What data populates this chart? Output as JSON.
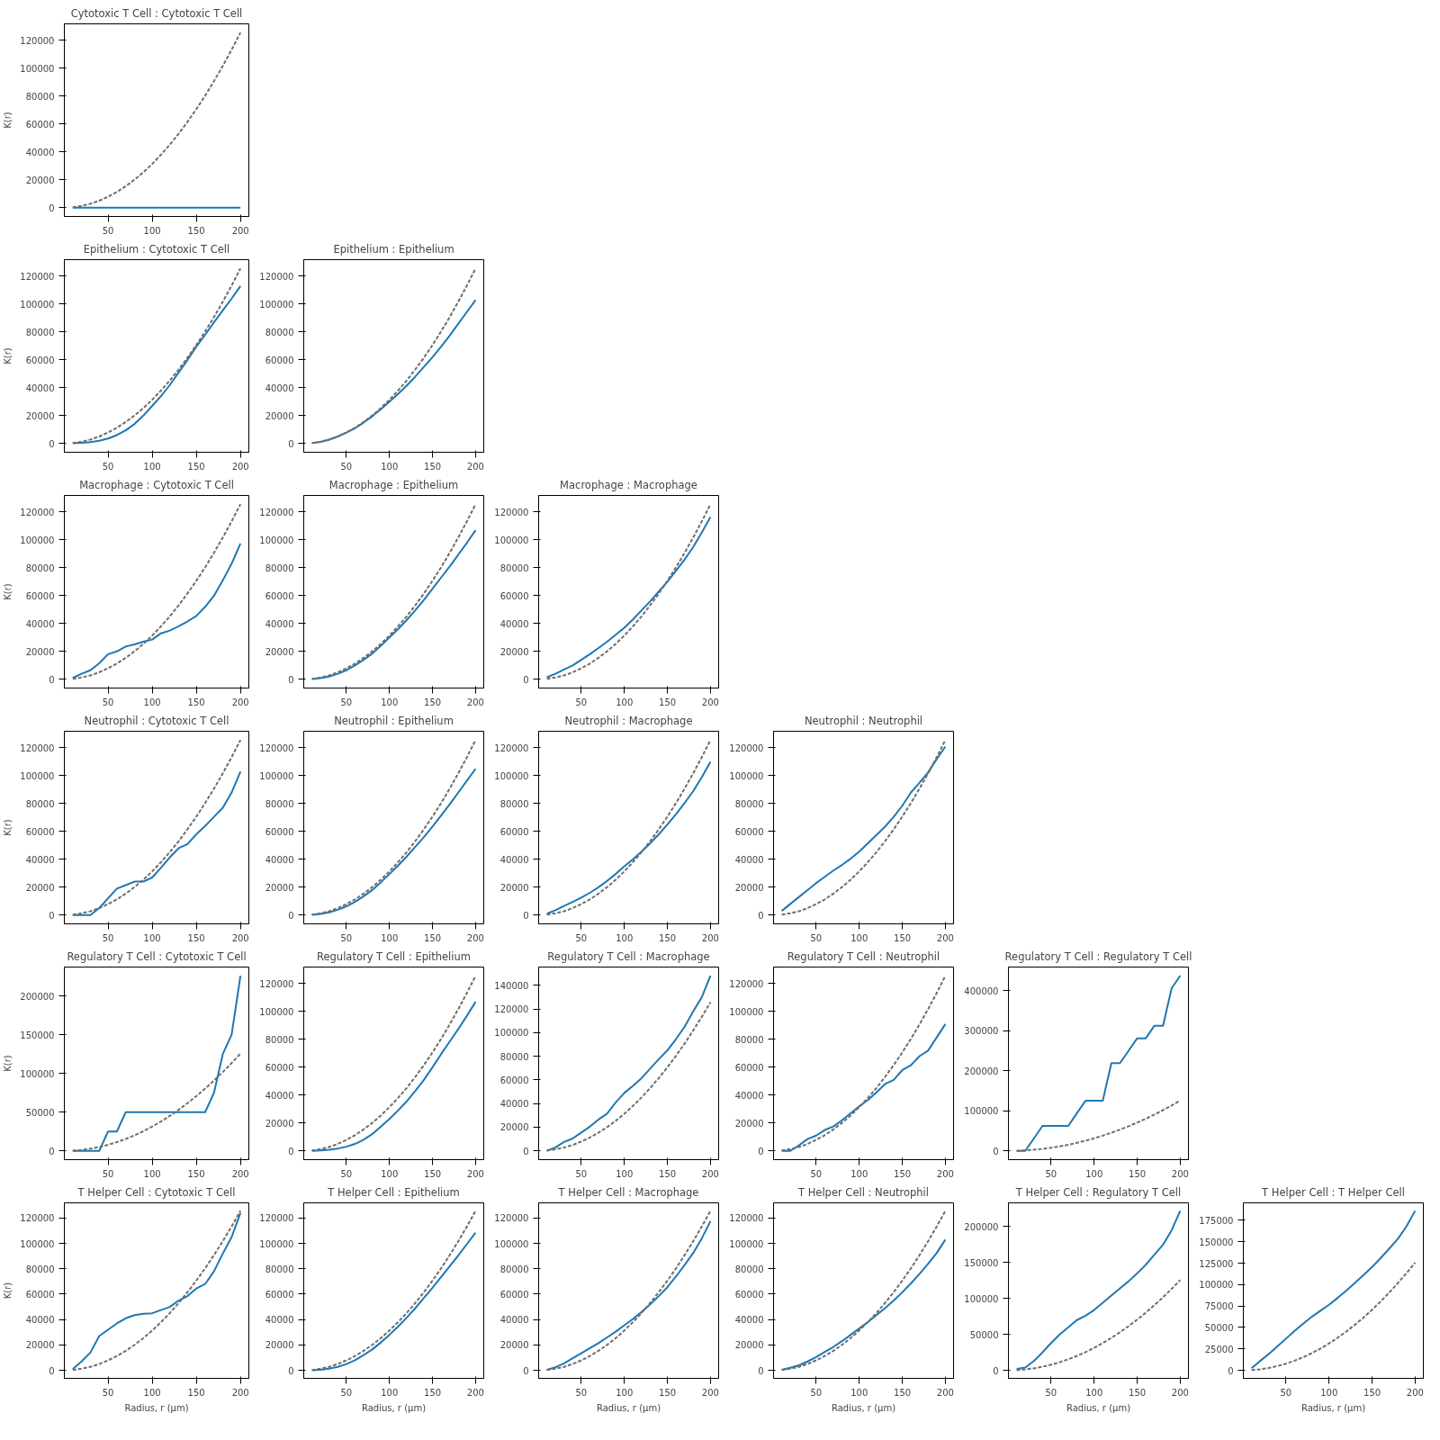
{
  "chart_data": [
    {
      "type": "line",
      "title": "Cytotoxic T Cell : Cytotoxic T Cell",
      "ylabel": "K(r)",
      "x": [
        10,
        20,
        30,
        40,
        50,
        60,
        70,
        80,
        90,
        100,
        110,
        120,
        130,
        140,
        150,
        160,
        170,
        180,
        190,
        200
      ],
      "xlim": [
        0.5,
        209.5
      ],
      "xticks": [
        50,
        100,
        150,
        200
      ],
      "ylim": [
        -6283,
        131947
      ],
      "yticks": [
        0,
        20000,
        40000,
        60000,
        80000,
        100000,
        120000
      ],
      "series": [
        {
          "color": "#1f77b4",
          "line_style": "solid",
          "values": [
            0,
            0,
            0,
            0,
            0,
            0,
            0,
            0,
            0,
            0,
            0,
            0,
            0,
            0,
            0,
            0,
            0,
            0,
            0,
            0
          ]
        },
        {
          "color": "#6e6e6e",
          "line_style": "dashed",
          "values": [
            300,
            1300,
            2800,
            5000,
            7900,
            11300,
            15400,
            20100,
            25400,
            31400,
            38000,
            45200,
            53100,
            61600,
            70700,
            80400,
            90800,
            101800,
            113400,
            125700
          ]
        }
      ]
    },
    {
      "type": "line",
      "title": "Epithelium : Cytotoxic T Cell",
      "ylabel": "K(r)",
      "x": [
        10,
        20,
        30,
        40,
        50,
        60,
        70,
        80,
        90,
        100,
        110,
        120,
        130,
        140,
        150,
        160,
        170,
        180,
        190,
        200
      ],
      "xlim": [
        0.5,
        209.5
      ],
      "xticks": [
        50,
        100,
        150,
        200
      ],
      "ylim": [
        -6283,
        131947
      ],
      "yticks": [
        0,
        20000,
        40000,
        60000,
        80000,
        100000,
        120000
      ],
      "series": [
        {
          "color": "#1f77b4",
          "line_style": "solid",
          "values": [
            200,
            500,
            1000,
            2000,
            3600,
            6000,
            9500,
            14000,
            20000,
            27000,
            34000,
            42000,
            51000,
            60000,
            69500,
            78000,
            87000,
            95500,
            104000,
            113000
          ]
        },
        {
          "color": "#6e6e6e",
          "line_style": "dashed",
          "values": [
            300,
            1300,
            2800,
            5000,
            7900,
            11300,
            15400,
            20100,
            25400,
            31400,
            38000,
            45200,
            53100,
            61600,
            70700,
            80400,
            90800,
            101800,
            113400,
            125700
          ]
        }
      ]
    },
    {
      "type": "line",
      "title": "Epithelium : Epithelium",
      "x": [
        10,
        20,
        30,
        40,
        50,
        60,
        70,
        80,
        90,
        100,
        110,
        120,
        130,
        140,
        150,
        160,
        170,
        180,
        190,
        200
      ],
      "xlim": [
        0.5,
        209.5
      ],
      "xticks": [
        50,
        100,
        150,
        200
      ],
      "ylim": [
        -6283,
        131947
      ],
      "yticks": [
        0,
        20000,
        40000,
        60000,
        80000,
        100000,
        120000
      ],
      "series": [
        {
          "color": "#1f77b4",
          "line_style": "solid",
          "values": [
            300,
            1200,
            2800,
            5000,
            7800,
            11000,
            15000,
            19500,
            24500,
            30000,
            35500,
            41500,
            48000,
            55000,
            62000,
            69500,
            77500,
            86000,
            94500,
            103000
          ]
        },
        {
          "color": "#6e6e6e",
          "line_style": "dashed",
          "values": [
            300,
            1300,
            2800,
            5000,
            7900,
            11300,
            15400,
            20100,
            25400,
            31400,
            38000,
            45200,
            53100,
            61600,
            70700,
            80400,
            90800,
            101800,
            113400,
            125700
          ]
        }
      ]
    },
    {
      "type": "line",
      "title": "Macrophage : Cytotoxic T Cell",
      "ylabel": "K(r)",
      "x": [
        10,
        20,
        30,
        40,
        50,
        60,
        70,
        80,
        90,
        100,
        110,
        120,
        130,
        140,
        150,
        160,
        170,
        180,
        190,
        200
      ],
      "xlim": [
        0.5,
        209.5
      ],
      "xticks": [
        50,
        100,
        150,
        200
      ],
      "ylim": [
        -6283,
        131947
      ],
      "yticks": [
        0,
        20000,
        40000,
        60000,
        80000,
        100000,
        120000
      ],
      "series": [
        {
          "color": "#1f77b4",
          "line_style": "solid",
          "values": [
            1000,
            4000,
            6500,
            11500,
            18000,
            20000,
            23500,
            25000,
            27000,
            28500,
            33000,
            35000,
            38000,
            41500,
            45500,
            52000,
            60000,
            71000,
            83000,
            97500
          ]
        },
        {
          "color": "#6e6e6e",
          "line_style": "dashed",
          "values": [
            300,
            1300,
            2800,
            5000,
            7900,
            11300,
            15400,
            20100,
            25400,
            31400,
            38000,
            45200,
            53100,
            61600,
            70700,
            80400,
            90800,
            101800,
            113400,
            125700
          ]
        }
      ]
    },
    {
      "type": "line",
      "title": "Macrophage : Epithelium",
      "x": [
        10,
        20,
        30,
        40,
        50,
        60,
        70,
        80,
        90,
        100,
        110,
        120,
        130,
        140,
        150,
        160,
        170,
        180,
        190,
        200
      ],
      "xlim": [
        0.5,
        209.5
      ],
      "xticks": [
        50,
        100,
        150,
        200
      ],
      "ylim": [
        -6283,
        131947
      ],
      "yticks": [
        0,
        20000,
        40000,
        60000,
        80000,
        100000,
        120000
      ],
      "series": [
        {
          "color": "#1f77b4",
          "line_style": "solid",
          "values": [
            200,
            800,
            2000,
            4000,
            6500,
            10000,
            14000,
            18500,
            24000,
            30000,
            36000,
            42500,
            49500,
            57000,
            65000,
            73000,
            81000,
            89500,
            98000,
            107000
          ]
        },
        {
          "color": "#6e6e6e",
          "line_style": "dashed",
          "values": [
            300,
            1300,
            2800,
            5000,
            7900,
            11300,
            15400,
            20100,
            25400,
            31400,
            38000,
            45200,
            53100,
            61600,
            70700,
            80400,
            90800,
            101800,
            113400,
            125700
          ]
        }
      ]
    },
    {
      "type": "line",
      "title": "Macrophage : Macrophage",
      "x": [
        10,
        20,
        30,
        40,
        50,
        60,
        70,
        80,
        90,
        100,
        110,
        120,
        130,
        140,
        150,
        160,
        170,
        180,
        190,
        200
      ],
      "xlim": [
        0.5,
        209.5
      ],
      "xticks": [
        50,
        100,
        150,
        200
      ],
      "ylim": [
        -6283,
        131947
      ],
      "yticks": [
        0,
        20000,
        40000,
        60000,
        80000,
        100000,
        120000
      ],
      "series": [
        {
          "color": "#1f77b4",
          "line_style": "solid",
          "values": [
            1500,
            4000,
            7000,
            10000,
            14000,
            18000,
            22500,
            27000,
            32000,
            37000,
            43000,
            49500,
            56000,
            63000,
            70000,
            78000,
            86000,
            95000,
            105500,
            116500
          ]
        },
        {
          "color": "#6e6e6e",
          "line_style": "dashed",
          "values": [
            300,
            1300,
            2800,
            5000,
            7900,
            11300,
            15400,
            20100,
            25400,
            31400,
            38000,
            45200,
            53100,
            61600,
            70700,
            80400,
            90800,
            101800,
            113400,
            125700
          ]
        }
      ]
    },
    {
      "type": "line",
      "title": "Neutrophil : Cytotoxic T Cell",
      "ylabel": "K(r)",
      "x": [
        10,
        20,
        30,
        40,
        50,
        60,
        70,
        80,
        90,
        100,
        110,
        120,
        130,
        140,
        150,
        160,
        170,
        180,
        190,
        200
      ],
      "xlim": [
        0.5,
        209.5
      ],
      "xticks": [
        50,
        100,
        150,
        200
      ],
      "ylim": [
        -6283,
        131947
      ],
      "yticks": [
        0,
        20000,
        40000,
        60000,
        80000,
        100000,
        120000
      ],
      "series": [
        {
          "color": "#1f77b4",
          "line_style": "solid",
          "values": [
            0,
            0,
            0,
            5000,
            12000,
            19000,
            21500,
            24000,
            24000,
            27000,
            34000,
            41500,
            48000,
            51000,
            58000,
            64000,
            70500,
            77000,
            88000,
            103000
          ]
        },
        {
          "color": "#6e6e6e",
          "line_style": "dashed",
          "values": [
            300,
            1300,
            2800,
            5000,
            7900,
            11300,
            15400,
            20100,
            25400,
            31400,
            38000,
            45200,
            53100,
            61600,
            70700,
            80400,
            90800,
            101800,
            113400,
            125700
          ]
        }
      ]
    },
    {
      "type": "line",
      "title": "Neutrophil : Epithelium",
      "x": [
        10,
        20,
        30,
        40,
        50,
        60,
        70,
        80,
        90,
        100,
        110,
        120,
        130,
        140,
        150,
        160,
        170,
        180,
        190,
        200
      ],
      "xlim": [
        0.5,
        209.5
      ],
      "xticks": [
        50,
        100,
        150,
        200
      ],
      "ylim": [
        -6283,
        131947
      ],
      "yticks": [
        0,
        20000,
        40000,
        60000,
        80000,
        100000,
        120000
      ],
      "series": [
        {
          "color": "#1f77b4",
          "line_style": "solid",
          "values": [
            200,
            800,
            2000,
            3800,
            6300,
            9500,
            13500,
            18000,
            23500,
            29500,
            35500,
            42000,
            49000,
            56000,
            63500,
            71500,
            79500,
            88000,
            96500,
            105000
          ]
        },
        {
          "color": "#6e6e6e",
          "line_style": "dashed",
          "values": [
            300,
            1300,
            2800,
            5000,
            7900,
            11300,
            15400,
            20100,
            25400,
            31400,
            38000,
            45200,
            53100,
            61600,
            70700,
            80400,
            90800,
            101800,
            113400,
            125700
          ]
        }
      ]
    },
    {
      "type": "line",
      "title": "Neutrophil : Macrophage",
      "x": [
        10,
        20,
        30,
        40,
        50,
        60,
        70,
        80,
        90,
        100,
        110,
        120,
        130,
        140,
        150,
        160,
        170,
        180,
        190,
        200
      ],
      "xlim": [
        0.5,
        209.5
      ],
      "xticks": [
        50,
        100,
        150,
        200
      ],
      "ylim": [
        -6283,
        131947
      ],
      "yticks": [
        0,
        20000,
        40000,
        60000,
        80000,
        100000,
        120000
      ],
      "series": [
        {
          "color": "#1f77b4",
          "line_style": "solid",
          "values": [
            1000,
            3500,
            6500,
            9500,
            12500,
            16000,
            20000,
            24500,
            29500,
            35000,
            40000,
            45500,
            51500,
            58000,
            65000,
            72500,
            80500,
            89000,
            99000,
            110000
          ]
        },
        {
          "color": "#6e6e6e",
          "line_style": "dashed",
          "values": [
            300,
            1300,
            2800,
            5000,
            7900,
            11300,
            15400,
            20100,
            25400,
            31400,
            38000,
            45200,
            53100,
            61600,
            70700,
            80400,
            90800,
            101800,
            113400,
            125700
          ]
        }
      ]
    },
    {
      "type": "line",
      "title": "Neutrophil : Neutrophil",
      "x": [
        10,
        20,
        30,
        40,
        50,
        60,
        70,
        80,
        90,
        100,
        110,
        120,
        130,
        140,
        150,
        160,
        170,
        180,
        190,
        200
      ],
      "xlim": [
        0.5,
        209.5
      ],
      "xticks": [
        50,
        100,
        150,
        200
      ],
      "ylim": [
        -6283,
        131947
      ],
      "yticks": [
        0,
        20000,
        40000,
        60000,
        80000,
        100000,
        120000
      ],
      "series": [
        {
          "color": "#1f77b4",
          "line_style": "solid",
          "values": [
            3000,
            8000,
            13000,
            18000,
            23000,
            27500,
            32000,
            36000,
            40500,
            45500,
            51500,
            57500,
            63500,
            70500,
            78500,
            88000,
            95000,
            102500,
            112000,
            121000
          ]
        },
        {
          "color": "#6e6e6e",
          "line_style": "dashed",
          "values": [
            300,
            1300,
            2800,
            5000,
            7900,
            11300,
            15400,
            20100,
            25400,
            31400,
            38000,
            45200,
            53100,
            61600,
            70700,
            80400,
            90800,
            101800,
            113400,
            125700
          ]
        }
      ]
    },
    {
      "type": "line",
      "title": "Regulatory T Cell : Cytotoxic T Cell",
      "ylabel": "K(r)",
      "x": [
        10,
        20,
        30,
        40,
        50,
        60,
        70,
        80,
        90,
        100,
        110,
        120,
        130,
        140,
        150,
        160,
        170,
        180,
        190,
        200
      ],
      "xlim": [
        0.5,
        209.5
      ],
      "xticks": [
        50,
        100,
        150,
        200
      ],
      "ylim": [
        -11300,
        237300
      ],
      "yticks": [
        0,
        50000,
        100000,
        150000,
        200000
      ],
      "series": [
        {
          "color": "#1f77b4",
          "line_style": "solid",
          "values": [
            0,
            0,
            0,
            0,
            25000,
            25000,
            50000,
            50000,
            50000,
            50000,
            50000,
            50000,
            50000,
            50000,
            50000,
            50000,
            75000,
            125000,
            150000,
            226000
          ]
        },
        {
          "color": "#6e6e6e",
          "line_style": "dashed",
          "values": [
            300,
            1300,
            2800,
            5000,
            7900,
            11300,
            15400,
            20100,
            25400,
            31400,
            38000,
            45200,
            53100,
            61600,
            70700,
            80400,
            90800,
            101800,
            113400,
            125700
          ]
        }
      ]
    },
    {
      "type": "line",
      "title": "Regulatory T Cell : Epithelium",
      "x": [
        10,
        20,
        30,
        40,
        50,
        60,
        70,
        80,
        90,
        100,
        110,
        120,
        130,
        140,
        150,
        160,
        170,
        180,
        190,
        200
      ],
      "xlim": [
        0.5,
        209.5
      ],
      "xticks": [
        50,
        100,
        150,
        200
      ],
      "ylim": [
        -6283,
        131947
      ],
      "yticks": [
        0,
        20000,
        40000,
        60000,
        80000,
        100000,
        120000
      ],
      "series": [
        {
          "color": "#1f77b4",
          "line_style": "solid",
          "values": [
            0,
            300,
            800,
            1700,
            3000,
            5000,
            8000,
            12000,
            17500,
            23000,
            29000,
            35500,
            43000,
            51000,
            60000,
            69500,
            78500,
            87500,
            97000,
            107000
          ]
        },
        {
          "color": "#6e6e6e",
          "line_style": "dashed",
          "values": [
            300,
            1300,
            2800,
            5000,
            7900,
            11300,
            15400,
            20100,
            25400,
            31400,
            38000,
            45200,
            53100,
            61600,
            70700,
            80400,
            90800,
            101800,
            113400,
            125700
          ]
        }
      ]
    },
    {
      "type": "line",
      "title": "Regulatory T Cell : Macrophage",
      "x": [
        10,
        20,
        30,
        40,
        50,
        60,
        70,
        80,
        90,
        100,
        110,
        120,
        130,
        140,
        150,
        160,
        170,
        180,
        190,
        200
      ],
      "xlim": [
        0.5,
        209.5
      ],
      "xticks": [
        50,
        100,
        150,
        200
      ],
      "ylim": [
        -7400,
        155400
      ],
      "yticks": [
        0,
        20000,
        40000,
        60000,
        80000,
        100000,
        120000,
        140000
      ],
      "series": [
        {
          "color": "#1f77b4",
          "line_style": "solid",
          "values": [
            0,
            3000,
            7500,
            10500,
            15500,
            20500,
            26500,
            31500,
            41000,
            49000,
            55000,
            61500,
            69500,
            77500,
            85000,
            94500,
            105000,
            118000,
            130000,
            148000
          ]
        },
        {
          "color": "#6e6e6e",
          "line_style": "dashed",
          "values": [
            300,
            1300,
            2800,
            5000,
            7900,
            11300,
            15400,
            20100,
            25400,
            31400,
            38000,
            45200,
            53100,
            61600,
            70700,
            80400,
            90800,
            101800,
            113400,
            125700
          ]
        }
      ]
    },
    {
      "type": "line",
      "title": "Regulatory T Cell : Neutrophil",
      "x": [
        10,
        20,
        30,
        40,
        50,
        60,
        70,
        80,
        90,
        100,
        110,
        120,
        130,
        140,
        150,
        160,
        170,
        180,
        190,
        200
      ],
      "xlim": [
        0.5,
        209.5
      ],
      "xticks": [
        50,
        100,
        150,
        200
      ],
      "ylim": [
        -6283,
        131947
      ],
      "yticks": [
        0,
        20000,
        40000,
        60000,
        80000,
        100000,
        120000
      ],
      "series": [
        {
          "color": "#1f77b4",
          "line_style": "solid",
          "values": [
            0,
            0,
            4000,
            8500,
            11000,
            15000,
            17500,
            22000,
            27000,
            32000,
            36500,
            42000,
            48000,
            51000,
            58000,
            61500,
            68000,
            72000,
            81500,
            91000
          ]
        },
        {
          "color": "#6e6e6e",
          "line_style": "dashed",
          "values": [
            300,
            1300,
            2800,
            5000,
            7900,
            11300,
            15400,
            20100,
            25400,
            31400,
            38000,
            45200,
            53100,
            61600,
            70700,
            80400,
            90800,
            101800,
            113400,
            125700
          ]
        }
      ]
    },
    {
      "type": "line",
      "title": "Regulatory T Cell : Regulatory T Cell",
      "x": [
        10,
        20,
        30,
        40,
        50,
        60,
        70,
        80,
        90,
        100,
        110,
        120,
        130,
        140,
        150,
        160,
        170,
        180,
        190,
        200
      ],
      "xlim": [
        0.5,
        209.5
      ],
      "xticks": [
        50,
        100,
        150,
        200
      ],
      "ylim": [
        -21850,
        458850
      ],
      "yticks": [
        0,
        100000,
        200000,
        300000,
        400000
      ],
      "series": [
        {
          "color": "#1f77b4",
          "line_style": "solid",
          "values": [
            0,
            0,
            31000,
            62500,
            62500,
            62500,
            62500,
            94000,
            125000,
            125000,
            125000,
            219000,
            219000,
            250000,
            281000,
            281000,
            312500,
            312500,
            406000,
            437500
          ]
        },
        {
          "color": "#6e6e6e",
          "line_style": "dashed",
          "values": [
            300,
            1300,
            2800,
            5000,
            7900,
            11300,
            15400,
            20100,
            25400,
            31400,
            38000,
            45200,
            53100,
            61600,
            70700,
            80400,
            90800,
            101800,
            113400,
            125700
          ]
        }
      ]
    },
    {
      "type": "line",
      "title": "T Helper Cell : Cytotoxic T Cell",
      "xlabel": "Radius, r (μm)",
      "ylabel": "K(r)",
      "x": [
        10,
        20,
        30,
        40,
        50,
        60,
        70,
        80,
        90,
        100,
        110,
        120,
        130,
        140,
        150,
        160,
        170,
        180,
        190,
        200
      ],
      "xlim": [
        0.5,
        209.5
      ],
      "xticks": [
        50,
        100,
        150,
        200
      ],
      "ylim": [
        -6283,
        131947
      ],
      "yticks": [
        0,
        20000,
        40000,
        60000,
        80000,
        100000,
        120000
      ],
      "series": [
        {
          "color": "#1f77b4",
          "line_style": "solid",
          "values": [
            1000,
            7000,
            14000,
            27000,
            32000,
            37000,
            41000,
            43500,
            44500,
            45000,
            47500,
            50000,
            55000,
            58500,
            64500,
            68000,
            78000,
            92000,
            105000,
            124000
          ]
        },
        {
          "color": "#6e6e6e",
          "line_style": "dashed",
          "values": [
            300,
            1300,
            2800,
            5000,
            7900,
            11300,
            15400,
            20100,
            25400,
            31400,
            38000,
            45200,
            53100,
            61600,
            70700,
            80400,
            90800,
            101800,
            113400,
            125700
          ]
        }
      ]
    },
    {
      "type": "line",
      "title": "T Helper Cell : Epithelium",
      "xlabel": "Radius, r (μm)",
      "x": [
        10,
        20,
        30,
        40,
        50,
        60,
        70,
        80,
        90,
        100,
        110,
        120,
        130,
        140,
        150,
        160,
        170,
        180,
        190,
        200
      ],
      "xlim": [
        0.5,
        209.5
      ],
      "xticks": [
        50,
        100,
        150,
        200
      ],
      "ylim": [
        -6283,
        131947
      ],
      "yticks": [
        0,
        20000,
        40000,
        60000,
        80000,
        100000,
        120000
      ],
      "series": [
        {
          "color": "#1f77b4",
          "line_style": "solid",
          "values": [
            100,
            500,
            1300,
            2800,
            5000,
            8000,
            12000,
            16500,
            22000,
            28000,
            34500,
            41500,
            49000,
            57000,
            65000,
            73500,
            82000,
            90500,
            99500,
            108500
          ]
        },
        {
          "color": "#6e6e6e",
          "line_style": "dashed",
          "values": [
            300,
            1300,
            2800,
            5000,
            7900,
            11300,
            15400,
            20100,
            25400,
            31400,
            38000,
            45200,
            53100,
            61600,
            70700,
            80400,
            90800,
            101800,
            113400,
            125700
          ]
        }
      ]
    },
    {
      "type": "line",
      "title": "T Helper Cell : Macrophage",
      "xlabel": "Radius, r (μm)",
      "x": [
        10,
        20,
        30,
        40,
        50,
        60,
        70,
        80,
        90,
        100,
        110,
        120,
        130,
        140,
        150,
        160,
        170,
        180,
        190,
        200
      ],
      "xlim": [
        0.5,
        209.5
      ],
      "xticks": [
        50,
        100,
        150,
        200
      ],
      "ylim": [
        -6283,
        131947
      ],
      "yticks": [
        0,
        20000,
        40000,
        60000,
        80000,
        100000,
        120000
      ],
      "series": [
        {
          "color": "#1f77b4",
          "line_style": "solid",
          "values": [
            500,
            2500,
            5500,
            9500,
            13500,
            17500,
            21500,
            26000,
            30500,
            35500,
            40500,
            46000,
            52000,
            58500,
            65500,
            74000,
            83000,
            92500,
            104000,
            117500
          ]
        },
        {
          "color": "#6e6e6e",
          "line_style": "dashed",
          "values": [
            300,
            1300,
            2800,
            5000,
            7900,
            11300,
            15400,
            20100,
            25400,
            31400,
            38000,
            45200,
            53100,
            61600,
            70700,
            80400,
            90800,
            101800,
            113400,
            125700
          ]
        }
      ]
    },
    {
      "type": "line",
      "title": "T Helper Cell : Neutrophil",
      "xlabel": "Radius, r (μm)",
      "x": [
        10,
        20,
        30,
        40,
        50,
        60,
        70,
        80,
        90,
        100,
        110,
        120,
        130,
        140,
        150,
        160,
        170,
        180,
        190,
        200
      ],
      "xlim": [
        0.5,
        209.5
      ],
      "xticks": [
        50,
        100,
        150,
        200
      ],
      "ylim": [
        -6283,
        131947
      ],
      "yticks": [
        0,
        20000,
        40000,
        60000,
        80000,
        100000,
        120000
      ],
      "series": [
        {
          "color": "#1f77b4",
          "line_style": "solid",
          "values": [
            500,
            2000,
            4000,
            7000,
            10500,
            14500,
            18500,
            23000,
            28000,
            33000,
            38000,
            43500,
            49000,
            55000,
            61500,
            68500,
            76000,
            84000,
            92500,
            103000
          ]
        },
        {
          "color": "#6e6e6e",
          "line_style": "dashed",
          "values": [
            300,
            1300,
            2800,
            5000,
            7900,
            11300,
            15400,
            20100,
            25400,
            31400,
            38000,
            45200,
            53100,
            61600,
            70700,
            80400,
            90800,
            101800,
            113400,
            125700
          ]
        }
      ]
    },
    {
      "type": "line",
      "title": "T Helper Cell : Regulatory T Cell",
      "xlabel": "Radius, r (μm)",
      "x": [
        10,
        20,
        30,
        40,
        50,
        60,
        70,
        80,
        90,
        100,
        110,
        120,
        130,
        140,
        150,
        160,
        170,
        180,
        190,
        200
      ],
      "xlim": [
        0.5,
        209.5
      ],
      "xticks": [
        50,
        100,
        150,
        200
      ],
      "ylim": [
        -11100,
        233100
      ],
      "yticks": [
        0,
        50000,
        100000,
        150000,
        200000
      ],
      "series": [
        {
          "color": "#1f77b4",
          "line_style": "solid",
          "values": [
            2000,
            4000,
            13000,
            25000,
            38000,
            50000,
            60000,
            70000,
            76000,
            84000,
            94000,
            104000,
            114000,
            124000,
            135000,
            147000,
            161000,
            175000,
            195000,
            222000
          ]
        },
        {
          "color": "#6e6e6e",
          "line_style": "dashed",
          "values": [
            300,
            1300,
            2800,
            5000,
            7900,
            11300,
            15400,
            20100,
            25400,
            31400,
            38000,
            45200,
            53100,
            61600,
            70700,
            80400,
            90800,
            101800,
            113400,
            125700
          ]
        }
      ]
    },
    {
      "type": "line",
      "title": "T Helper Cell : T Helper Cell",
      "xlabel": "Radius, r (μm)",
      "x": [
        10,
        20,
        30,
        40,
        50,
        60,
        70,
        80,
        90,
        100,
        110,
        120,
        130,
        140,
        150,
        160,
        170,
        180,
        190,
        200
      ],
      "xlim": [
        0.5,
        209.5
      ],
      "xticks": [
        50,
        100,
        150,
        200
      ],
      "ylim": [
        -9300,
        195300
      ],
      "yticks": [
        0,
        25000,
        50000,
        75000,
        100000,
        125000,
        150000,
        175000
      ],
      "series": [
        {
          "color": "#1f77b4",
          "line_style": "solid",
          "values": [
            2500,
            11000,
            19000,
            28000,
            37000,
            46000,
            54500,
            62500,
            69500,
            76500,
            84500,
            93000,
            102000,
            111000,
            120500,
            131000,
            142000,
            153500,
            168000,
            186000
          ]
        },
        {
          "color": "#6e6e6e",
          "line_style": "dashed",
          "values": [
            300,
            1300,
            2800,
            5000,
            7900,
            11300,
            15400,
            20100,
            25400,
            31400,
            38000,
            45200,
            53100,
            61600,
            70700,
            80400,
            90800,
            101800,
            113400,
            125700
          ]
        }
      ]
    }
  ]
}
